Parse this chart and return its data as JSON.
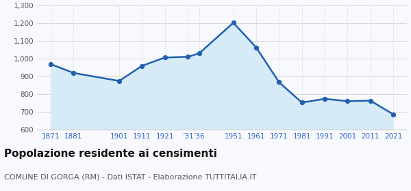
{
  "years": [
    1871,
    1881,
    1901,
    1911,
    1921,
    1931,
    1936,
    1951,
    1961,
    1971,
    1981,
    1991,
    2001,
    2011,
    2021
  ],
  "population": [
    971,
    921,
    876,
    961,
    1008,
    1012,
    1031,
    1204,
    1065,
    869,
    754,
    775,
    762,
    765,
    688
  ],
  "x_labels": [
    "1871",
    "1881",
    "1901",
    "1911",
    "1921",
    "’31",
    "’36",
    "1951",
    "1961",
    "1971",
    "1981",
    "1991",
    "2001",
    "2011",
    "2021"
  ],
  "line_color": "#2060b0",
  "fill_color": "#d6eaf8",
  "marker_color": "#2060b0",
  "bg_color": "#f7f9fc",
  "grid_color": "#cccccc",
  "ylim": [
    600,
    1300
  ],
  "yticks": [
    600,
    700,
    800,
    900,
    1000,
    1100,
    1200,
    1300
  ],
  "title": "Popolazione residente ai censimenti",
  "subtitle": "COMUNE DI GORGA (RM) - Dati ISTAT - Elaborazione TUTTITALIA.IT",
  "title_fontsize": 11,
  "subtitle_fontsize": 8,
  "label_color": "#3366cc"
}
